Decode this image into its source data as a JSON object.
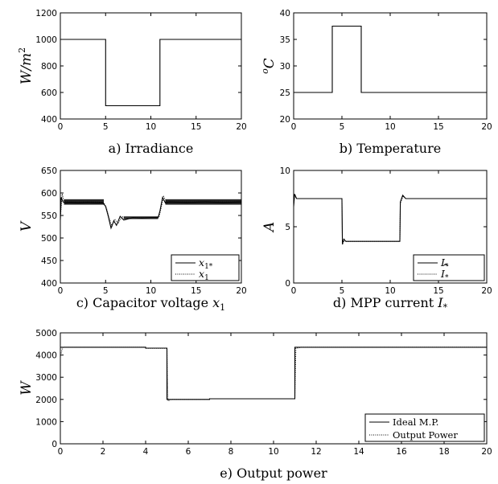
{
  "chart_data": [
    {
      "id": "a",
      "type": "line",
      "title": "a) Irradiance",
      "ylabel": "W/m²",
      "xlim": [
        0,
        20
      ],
      "ylim": [
        400,
        1200
      ],
      "xticks": [
        0,
        5,
        10,
        15,
        20
      ],
      "yticks": [
        400,
        600,
        800,
        1000,
        1200
      ],
      "series": [
        {
          "style": "solid",
          "x": [
            0,
            5,
            5,
            11,
            11,
            20
          ],
          "y": [
            1000,
            1000,
            500,
            500,
            1000,
            1000
          ]
        }
      ]
    },
    {
      "id": "b",
      "type": "line",
      "title": "b) Temperature",
      "ylabel": "°C",
      "xlim": [
        0,
        20
      ],
      "ylim": [
        20,
        40
      ],
      "xticks": [
        0,
        5,
        10,
        15,
        20
      ],
      "yticks": [
        20,
        25,
        30,
        35,
        40
      ],
      "series": [
        {
          "style": "solid",
          "x": [
            0,
            4,
            4,
            7,
            7,
            20
          ],
          "y": [
            25,
            25,
            37.5,
            37.5,
            25,
            25
          ]
        }
      ]
    },
    {
      "id": "c",
      "type": "line",
      "title": "c) Capacitor voltage x₁",
      "ylabel": "V",
      "xlim": [
        0,
        20
      ],
      "ylim": [
        400,
        650
      ],
      "xticks": [
        0,
        5,
        10,
        15,
        20
      ],
      "yticks": [
        400,
        450,
        500,
        550,
        600,
        650
      ],
      "legend": "bottom-right",
      "series": [
        {
          "name": "x₁*",
          "style": "solid",
          "x": [
            0,
            0.1,
            0.3,
            0.6,
            1,
            2,
            3,
            4,
            4.7,
            5,
            5.3,
            5.6,
            5.9,
            6.2,
            6.6,
            7,
            8,
            9,
            10,
            10.8,
            11,
            11.3,
            11.6,
            12,
            14,
            16,
            18,
            20
          ],
          "y": [
            540,
            590,
            580,
            578,
            579,
            578,
            579,
            578,
            578,
            570,
            548,
            522,
            538,
            528,
            548,
            540,
            545,
            544,
            545,
            545,
            560,
            590,
            578,
            580,
            579,
            580,
            579,
            580
          ]
        },
        {
          "name": "x₁",
          "style": "dotted",
          "x": [
            0,
            0.2,
            0.4,
            0.8,
            1,
            2,
            3,
            4,
            4.8,
            5.1,
            5.4,
            5.7,
            6,
            6.4,
            6.8,
            7.2,
            8,
            9,
            10,
            10.9,
            11.1,
            11.4,
            11.8,
            12,
            14,
            16,
            18,
            20
          ],
          "y": [
            545,
            598,
            582,
            580,
            580,
            580,
            580,
            580,
            579,
            566,
            544,
            526,
            542,
            532,
            548,
            542,
            545,
            545,
            545,
            546,
            564,
            592,
            579,
            580,
            580,
            580,
            580,
            580
          ]
        }
      ]
    },
    {
      "id": "d",
      "type": "line",
      "title": "d) MPP current I*",
      "ylabel": "A",
      "xlim": [
        0,
        20
      ],
      "ylim": [
        0,
        10
      ],
      "xticks": [
        0,
        5,
        10,
        15,
        20
      ],
      "yticks": [
        0,
        5,
        10
      ],
      "legend": "bottom-right",
      "series": [
        {
          "name": "I*",
          "style": "solid",
          "x": [
            0,
            0.1,
            0.3,
            5,
            5.05,
            5.2,
            5.4,
            6,
            11,
            11.05,
            11.3,
            11.6,
            12,
            20
          ],
          "y": [
            6.8,
            7.9,
            7.5,
            7.5,
            3.5,
            3.9,
            3.7,
            3.7,
            3.7,
            7.2,
            7.8,
            7.5,
            7.5,
            7.5
          ]
        },
        {
          "name": "Î*",
          "style": "dotted",
          "x": [
            0,
            0.1,
            0.3,
            5,
            5.05,
            5.25,
            5.45,
            6,
            11,
            11.05,
            11.35,
            11.65,
            12,
            20
          ],
          "y": [
            6.9,
            7.8,
            7.5,
            7.5,
            3.4,
            3.8,
            3.7,
            3.7,
            3.7,
            7.1,
            7.7,
            7.5,
            7.5,
            7.5
          ]
        }
      ]
    },
    {
      "id": "e",
      "type": "line",
      "title": "e) Output power",
      "ylabel": "W",
      "xlim": [
        0,
        20
      ],
      "ylim": [
        0,
        5000
      ],
      "xticks": [
        0,
        2,
        4,
        6,
        8,
        10,
        12,
        14,
        16,
        18,
        20
      ],
      "yticks": [
        0,
        1000,
        2000,
        3000,
        4000,
        5000
      ],
      "legend": "bottom-right",
      "series": [
        {
          "name": "Ideal M.P.",
          "style": "solid",
          "x": [
            0,
            4,
            4,
            5,
            5,
            7,
            7,
            11,
            11,
            20
          ],
          "y": [
            4350,
            4350,
            4310,
            4310,
            2000,
            2000,
            2030,
            2030,
            4350,
            4350
          ]
        },
        {
          "name": "Output Power",
          "style": "dotted",
          "x": [
            0,
            0.1,
            0.2,
            4,
            4,
            5,
            5.05,
            5.2,
            7,
            7,
            11,
            11.05,
            11.3,
            20
          ],
          "y": [
            3900,
            4340,
            4350,
            4350,
            4300,
            4300,
            1930,
            2000,
            2000,
            2030,
            2030,
            4300,
            4350,
            4350
          ]
        }
      ]
    }
  ]
}
